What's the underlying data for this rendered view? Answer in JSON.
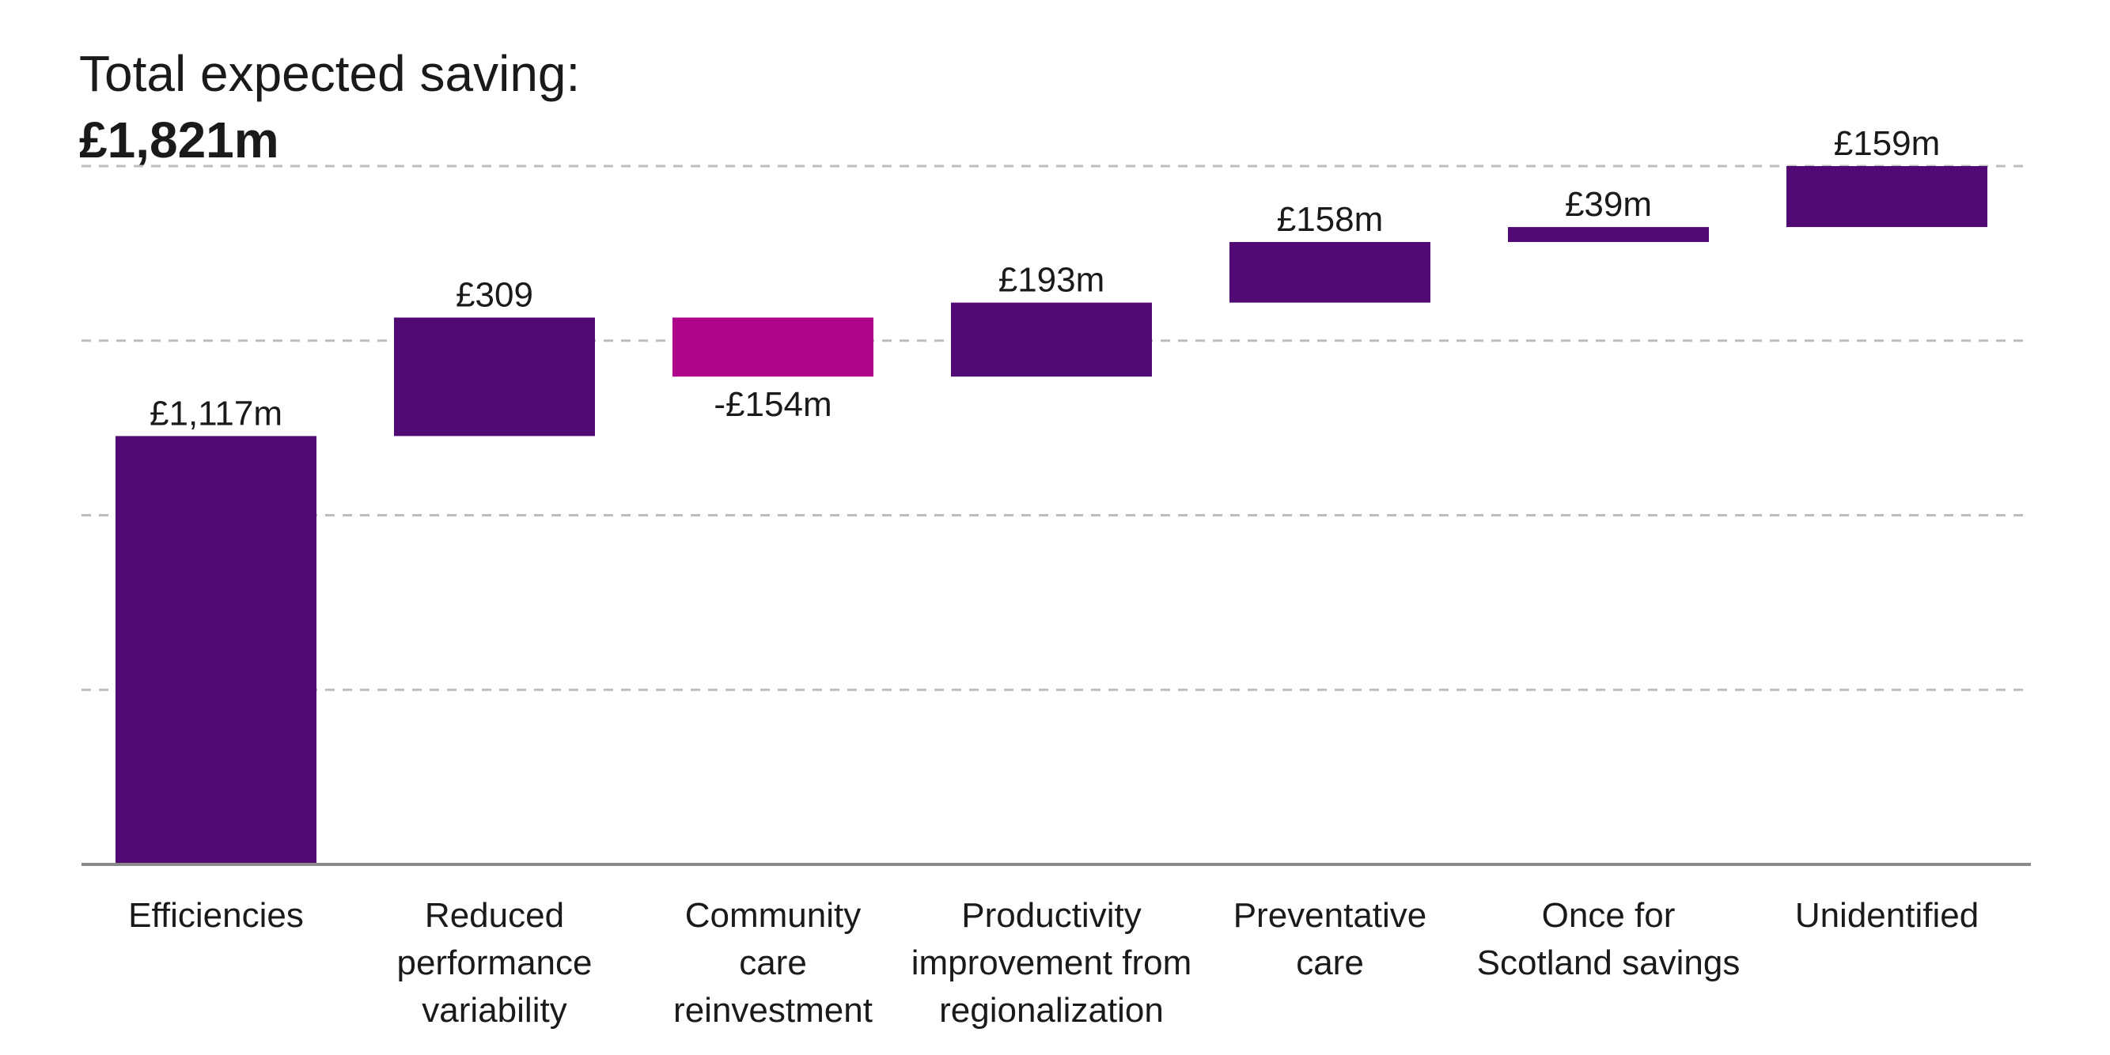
{
  "header": {
    "title_line_1": "Total expected saving:",
    "title_line_2": "£1,821m"
  },
  "colors": {
    "positive": "#510a73",
    "negative": "#b0038c",
    "gridline": "#bdbdbd",
    "baseline": "#8a8a8a",
    "text": "#1a1a1a"
  },
  "chart_data": {
    "type": "bar",
    "subtype": "waterfall",
    "title": "Total expected saving:",
    "subtitle": "£1,821m",
    "grid": true,
    "grid_style": "dashed-horizontal",
    "ylim": [
      0,
      1821
    ],
    "categories": [
      [
        "Efficiencies"
      ],
      [
        "Reduced",
        "performance",
        "variability"
      ],
      [
        "Community",
        "care",
        "reinvestment"
      ],
      [
        "Productivity",
        "improvement from",
        "regionalization"
      ],
      [
        "Preventative",
        "care"
      ],
      [
        "Once for",
        "Scotland savings"
      ],
      [
        "Unidentified"
      ]
    ],
    "values": [
      1117,
      309,
      -154,
      193,
      158,
      39,
      159
    ],
    "value_labels": [
      "£1,117m",
      "£309",
      "-£154m",
      "£193m",
      "£158m",
      "£39m",
      "£159m"
    ],
    "total": 1821
  }
}
